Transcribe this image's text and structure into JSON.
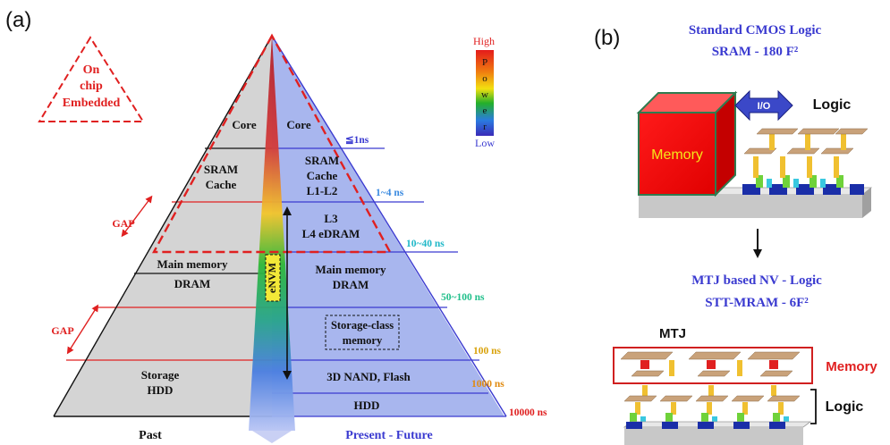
{
  "panel_a": {
    "label": "(a)",
    "embedded": [
      "On",
      "chip",
      "Embedded"
    ],
    "power_scale": {
      "high": "High",
      "letters": [
        "P",
        "o",
        "w",
        "e",
        "r"
      ],
      "low": "Low"
    },
    "past": {
      "core": "Core",
      "sram": [
        "SRAM",
        "Cache"
      ],
      "main": [
        "Main memory",
        "DRAM"
      ],
      "storage": [
        "Storage",
        "HDD"
      ],
      "axis_label": "Past"
    },
    "present": {
      "core": "Core",
      "sram": [
        "SRAM",
        "Cache",
        "L1-L2"
      ],
      "l3": [
        "L3",
        "L4 eDRAM"
      ],
      "main": [
        "Main memory",
        "DRAM"
      ],
      "storage_class": [
        "Storage-class",
        "memory"
      ],
      "nand": "3D NAND, Flash",
      "hdd": "HDD",
      "axis_label": "Present - Future"
    },
    "envm": "eNVM",
    "gap": [
      "GAP",
      "GAP"
    ],
    "latencies": [
      "≦1ns",
      "1~4 ns",
      "10~40 ns",
      "50~100 ns",
      "100 ns",
      "1000 ns",
      "10000 ns"
    ],
    "colors": {
      "past_fill": "#d4d4d4",
      "present_fill": "#a8b6ee",
      "red": "#e02020",
      "blue": "#3a3ad0"
    }
  },
  "panel_b": {
    "label": "(b)",
    "cmos_title": "Standard CMOS Logic",
    "cmos_sub": "SRAM - 180 F²",
    "memory": "Memory",
    "io": "I/O",
    "logic": "Logic",
    "mtj_title": "MTJ based NV - Logic",
    "mtj_sub": "STT-MRAM - 6F²",
    "mtj": "MTJ",
    "memory_tag": "Memory",
    "logic_tag": "Logic"
  }
}
